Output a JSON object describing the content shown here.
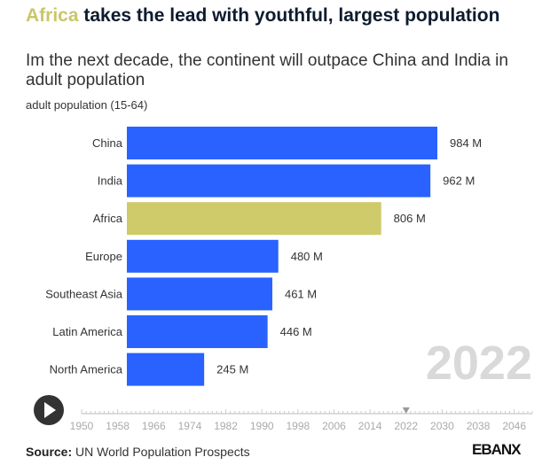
{
  "title_highlight": "Africa",
  "title_rest": " takes the lead with youthful, largest population",
  "subtitle": "Im the next decade, the continent will outpace China and India in adult population",
  "unit_label": "adult population (15-64)",
  "source_label": "Source:",
  "source_text": " UN World Population Prospects",
  "logo": "EBANX",
  "colors": {
    "default": "#2962ff",
    "highlight": "#cfca6a"
  },
  "chart_data": {
    "type": "bar",
    "orientation": "horizontal",
    "year": "2022",
    "categories": [
      "China",
      "India",
      "Africa",
      "Europe",
      "Southeast Asia",
      "Latin America",
      "North America"
    ],
    "values": [
      984,
      962,
      806,
      480,
      461,
      446,
      245
    ],
    "value_labels": [
      "984 M",
      "962 M",
      "806 M",
      "480 M",
      "461 M",
      "446 M",
      "245 M"
    ],
    "highlight": "Africa",
    "timeline": {
      "ticks": [
        "1950",
        "1958",
        "1966",
        "1974",
        "1982",
        "1990",
        "1998",
        "2006",
        "2014",
        "2022",
        "2030",
        "2038",
        "2046"
      ],
      "range": [
        1950,
        2050
      ],
      "current": 2022
    }
  }
}
